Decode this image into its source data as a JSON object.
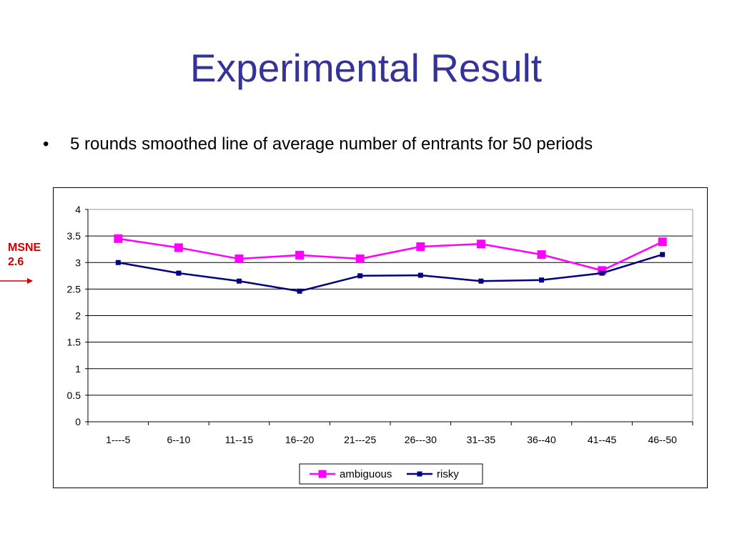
{
  "slide": {
    "title": "Experimental Result",
    "bullet_symbol": "•",
    "bullet_text": "5 rounds smoothed line of average number of entrants for 50 periods"
  },
  "annotation": {
    "label_line1": "MSNE",
    "label_line2": "2.6",
    "color": "#cc0000"
  },
  "chart_data": {
    "type": "line",
    "categories": [
      "1----5",
      "6--10",
      "11--15",
      "16--20",
      "21---25",
      "26---30",
      "31--35",
      "36--40",
      "41--45",
      "46--50"
    ],
    "series": [
      {
        "name": "ambiguous",
        "values": [
          3.45,
          3.28,
          3.07,
          3.14,
          3.07,
          3.3,
          3.35,
          3.15,
          2.85,
          3.39
        ],
        "color": "#ff00ff",
        "marker": "square-large"
      },
      {
        "name": "risky",
        "values": [
          3.0,
          2.8,
          2.65,
          2.46,
          2.75,
          2.76,
          2.65,
          2.67,
          2.8,
          3.15
        ],
        "color": "#000080",
        "marker": "square-small"
      }
    ],
    "ylim": [
      0,
      4
    ],
    "yticks": [
      "0",
      "0.5",
      "1",
      "1.5",
      "2",
      "2.5",
      "3",
      "3.5",
      "4"
    ],
    "grid": true,
    "legend_position": "bottom"
  }
}
